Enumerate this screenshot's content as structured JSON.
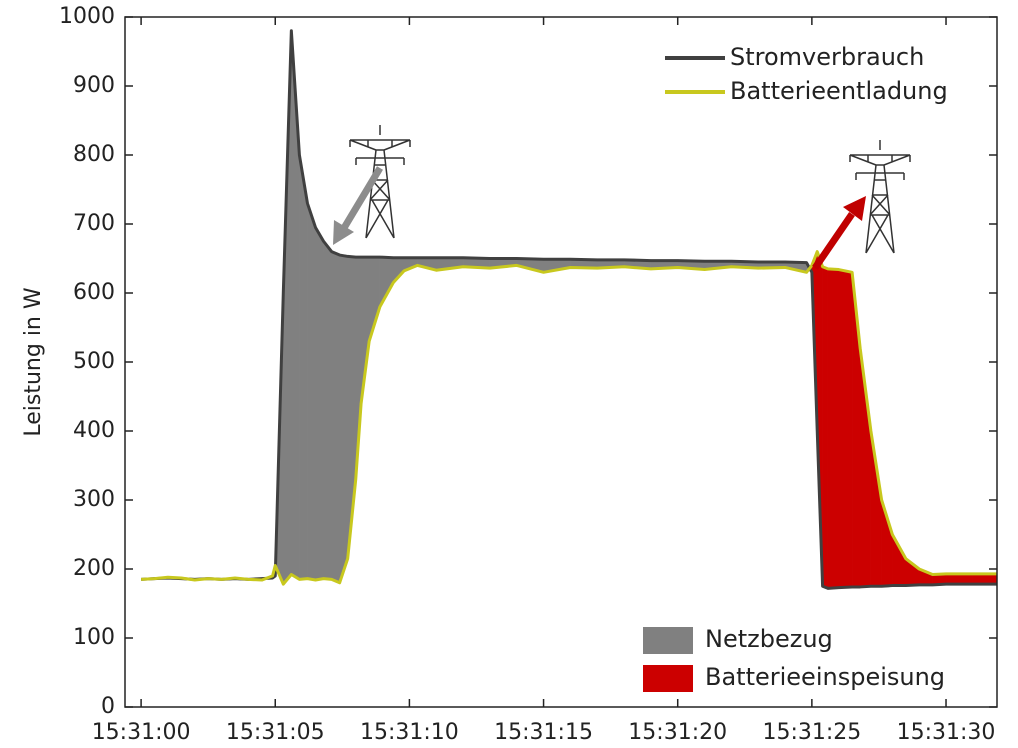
{
  "chart_data": {
    "type": "line",
    "ylabel": "Leistung in W",
    "x": [
      "15:31:00",
      "15:31:00.5",
      "15:31:01",
      "15:31:01.5",
      "15:31:02",
      "15:31:02.5",
      "15:31:03",
      "15:31:03.5",
      "15:31:04",
      "15:31:04.5",
      "15:31:04.9",
      "15:31:05",
      "15:31:05.3",
      "15:31:05.6",
      "15:31:05.9",
      "15:31:06.2",
      "15:31:06.5",
      "15:31:06.8",
      "15:31:07.1",
      "15:31:07.4",
      "15:31:07.7",
      "15:31:08",
      "15:31:08.2",
      "15:31:08.5",
      "15:31:08.9",
      "15:31:09.4",
      "15:31:09.8",
      "15:31:10.3",
      "15:31:11",
      "15:31:12",
      "15:31:13",
      "15:31:14",
      "15:31:15",
      "15:31:16",
      "15:31:17",
      "15:31:18",
      "15:31:19",
      "15:31:20",
      "15:31:21",
      "15:31:22",
      "15:31:23",
      "15:31:24",
      "15:31:24.8",
      "15:31:25",
      "15:31:25.2",
      "15:31:25.4",
      "15:31:25.6",
      "15:31:26",
      "15:31:26.5",
      "15:31:26.8",
      "15:31:27.2",
      "15:31:27.6",
      "15:31:28",
      "15:31:28.5",
      "15:31:29",
      "15:31:29.5",
      "15:31:30",
      "15:31:31",
      "15:31:31.9"
    ],
    "series": [
      {
        "name": "Stromverbrauch",
        "color": "#404040",
        "values": [
          185,
          186,
          187,
          186,
          185,
          186,
          185,
          186,
          185,
          186,
          187,
          190,
          600,
          980,
          800,
          730,
          695,
          675,
          660,
          655,
          653,
          652,
          652,
          652,
          652,
          651,
          651,
          651,
          651,
          651,
          650,
          650,
          649,
          649,
          648,
          648,
          647,
          647,
          646,
          646,
          645,
          645,
          644,
          630,
          400,
          175,
          172,
          173,
          174,
          174,
          175,
          175,
          176,
          176,
          177,
          177,
          178,
          178,
          178
        ]
      },
      {
        "name": "Batterieentladung",
        "color": "#c8c81e",
        "values": [
          185,
          186,
          188,
          187,
          184,
          186,
          185,
          187,
          185,
          184,
          190,
          205,
          178,
          192,
          185,
          186,
          184,
          186,
          185,
          180,
          215,
          330,
          440,
          530,
          580,
          615,
          632,
          640,
          633,
          638,
          636,
          640,
          630,
          637,
          636,
          638,
          635,
          637,
          634,
          638,
          636,
          637,
          630,
          640,
          660,
          638,
          635,
          634,
          630,
          520,
          400,
          300,
          250,
          215,
          200,
          192,
          193,
          193,
          193
        ]
      }
    ],
    "fills": [
      {
        "name": "Netzbezug",
        "color": "#808080"
      },
      {
        "name": "Batterieeinspeisung",
        "color": "#cc0000"
      }
    ],
    "xlim": [
      "15:30:59.4",
      "15:31:31.9"
    ],
    "xticks": [
      "15:31:00",
      "15:31:05",
      "15:31:10",
      "15:31:15",
      "15:31:20",
      "15:31:25",
      "15:31:30"
    ],
    "ylim": [
      0,
      1000
    ],
    "yticks": [
      0,
      100,
      200,
      300,
      400,
      500,
      600,
      700,
      800,
      900,
      1000
    ],
    "legend": "upper right",
    "fill_legend": "lower right"
  }
}
